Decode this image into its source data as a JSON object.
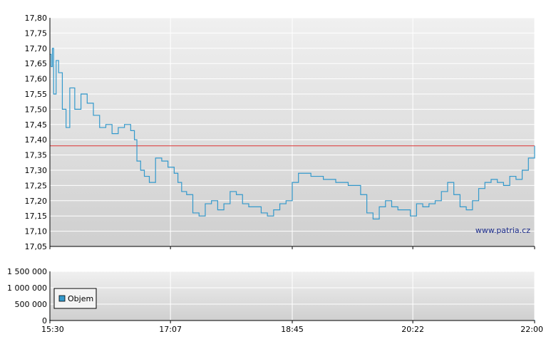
{
  "watermark": "www.patria.cz",
  "colors": {
    "price_line": "#3399cc",
    "reference_line": "#dd3333",
    "grid": "#ffffff",
    "plot_bg_top": "#f0f0f0",
    "plot_bg_bottom": "#cfcfcf",
    "legend_swatch": "#3399cc"
  },
  "chart_data": [
    {
      "type": "line",
      "title": "",
      "xlabel": "",
      "ylabel": "",
      "ylim": [
        17.05,
        17.8
      ],
      "y_ticks": [
        "17,80",
        "17,75",
        "17,70",
        "17,65",
        "17,60",
        "17,55",
        "17,50",
        "17,45",
        "17,40",
        "17,35",
        "17,30",
        "17,25",
        "17,20",
        "17,15",
        "17,10",
        "17,05"
      ],
      "y_tick_values": [
        17.8,
        17.75,
        17.7,
        17.65,
        17.6,
        17.55,
        17.5,
        17.45,
        17.4,
        17.35,
        17.3,
        17.25,
        17.2,
        17.15,
        17.1,
        17.05
      ],
      "reference_line": 17.38,
      "x_range": [
        "15:30",
        "22:00"
      ],
      "grid": true,
      "series": [
        {
          "x": [
            "15:30",
            "15:31",
            "15:32",
            "15:33",
            "15:35",
            "15:37",
            "15:40",
            "15:43",
            "15:46",
            "15:50",
            "15:55",
            "16:00",
            "16:05",
            "16:10",
            "16:15",
            "16:20",
            "16:25",
            "16:30",
            "16:35",
            "16:38",
            "16:40",
            "16:43",
            "16:46",
            "16:50",
            "16:55",
            "17:00",
            "17:05",
            "17:10",
            "17:13",
            "17:16",
            "17:20",
            "17:25",
            "17:30",
            "17:35",
            "17:40",
            "17:45",
            "17:50",
            "17:55",
            "18:00",
            "18:05",
            "18:10",
            "18:15",
            "18:20",
            "18:25",
            "18:30",
            "18:35",
            "18:40",
            "18:45",
            "18:50",
            "18:55",
            "19:00",
            "19:10",
            "19:20",
            "19:30",
            "19:40",
            "19:45",
            "19:50",
            "19:55",
            "20:00",
            "20:05",
            "20:10",
            "20:15",
            "20:20",
            "20:25",
            "20:30",
            "20:35",
            "20:40",
            "20:45",
            "20:50",
            "20:55",
            "21:00",
            "21:05",
            "21:10",
            "21:15",
            "21:20",
            "21:25",
            "21:30",
            "21:35",
            "21:40",
            "21:45",
            "21:50",
            "21:55",
            "22:00"
          ],
          "y": [
            17.68,
            17.64,
            17.7,
            17.55,
            17.66,
            17.62,
            17.5,
            17.44,
            17.57,
            17.5,
            17.55,
            17.52,
            17.48,
            17.44,
            17.45,
            17.42,
            17.44,
            17.45,
            17.43,
            17.4,
            17.33,
            17.3,
            17.28,
            17.26,
            17.34,
            17.33,
            17.31,
            17.29,
            17.26,
            17.23,
            17.22,
            17.16,
            17.15,
            17.19,
            17.2,
            17.17,
            17.19,
            17.23,
            17.22,
            17.19,
            17.18,
            17.18,
            17.16,
            17.15,
            17.17,
            17.19,
            17.2,
            17.26,
            17.29,
            17.29,
            17.28,
            17.27,
            17.26,
            17.25,
            17.22,
            17.16,
            17.14,
            17.18,
            17.2,
            17.18,
            17.17,
            17.17,
            17.15,
            17.19,
            17.18,
            17.19,
            17.2,
            17.23,
            17.26,
            17.22,
            17.18,
            17.17,
            17.2,
            17.24,
            17.26,
            17.27,
            17.26,
            17.25,
            17.28,
            17.27,
            17.3,
            17.34,
            17.38
          ]
        }
      ]
    },
    {
      "type": "bar",
      "title": "",
      "xlabel": "",
      "ylabel": "",
      "ylim": [
        0,
        1500000
      ],
      "y_ticks": [
        "1 500 000",
        "1 000 000",
        "500 000",
        "0"
      ],
      "y_tick_values": [
        1500000,
        1000000,
        500000,
        0
      ],
      "x_ticks": [
        "15:30",
        "17:07",
        "18:45",
        "20:22",
        "22:00"
      ],
      "legend": {
        "label": "Objem",
        "placement": "left"
      },
      "series": [
        {
          "name": "Objem",
          "x": [
            "15:30",
            "16:30",
            "17:07",
            "18:00",
            "18:45",
            "20:22",
            "21:30",
            "22:00"
          ],
          "values": [
            15000,
            8000,
            5000,
            4000,
            6000,
            5000,
            7000,
            12000
          ]
        }
      ]
    }
  ]
}
